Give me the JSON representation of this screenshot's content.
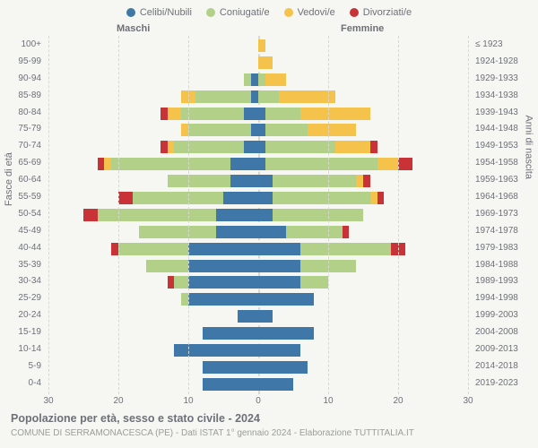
{
  "chart": {
    "type": "population-pyramid",
    "background_color": "#f6f7f3",
    "grid_color": "#d7d8d2",
    "text_color": "#6e7078",
    "header_male": "Maschi",
    "header_female": "Femmine",
    "ylabel_left": "Fasce di età",
    "ylabel_right": "Anni di nascita",
    "xmax": 30,
    "xticks": [
      30,
      20,
      10,
      0,
      10,
      20,
      30
    ],
    "legend": [
      {
        "label": "Celibi/Nubili",
        "color": "#3f78a8"
      },
      {
        "label": "Coniugati/e",
        "color": "#b2d088"
      },
      {
        "label": "Vedovi/e",
        "color": "#f5c24c"
      },
      {
        "label": "Divorziati/e",
        "color": "#c93337"
      }
    ],
    "rows": [
      {
        "age": "100+",
        "birth": "≤ 1923",
        "m": [
          0,
          0,
          0,
          0
        ],
        "f": [
          0,
          0,
          1,
          0
        ]
      },
      {
        "age": "95-99",
        "birth": "1924-1928",
        "m": [
          0,
          0,
          0,
          0
        ],
        "f": [
          0,
          0,
          2,
          0
        ]
      },
      {
        "age": "90-94",
        "birth": "1929-1933",
        "m": [
          1,
          1,
          0,
          0
        ],
        "f": [
          0,
          1,
          3,
          0
        ]
      },
      {
        "age": "85-89",
        "birth": "1934-1938",
        "m": [
          1,
          8,
          2,
          0
        ],
        "f": [
          0,
          3,
          8,
          0
        ]
      },
      {
        "age": "80-84",
        "birth": "1939-1943",
        "m": [
          2,
          9,
          2,
          1
        ],
        "f": [
          1,
          5,
          10,
          0
        ]
      },
      {
        "age": "75-79",
        "birth": "1944-1948",
        "m": [
          1,
          9,
          1,
          0
        ],
        "f": [
          1,
          6,
          7,
          0
        ]
      },
      {
        "age": "70-74",
        "birth": "1949-1953",
        "m": [
          2,
          10,
          1,
          1
        ],
        "f": [
          1,
          10,
          5,
          1
        ]
      },
      {
        "age": "65-69",
        "birth": "1954-1958",
        "m": [
          4,
          17,
          1,
          1
        ],
        "f": [
          1,
          16,
          3,
          2
        ]
      },
      {
        "age": "60-64",
        "birth": "1959-1963",
        "m": [
          4,
          9,
          0,
          0
        ],
        "f": [
          2,
          12,
          1,
          1
        ]
      },
      {
        "age": "55-59",
        "birth": "1964-1968",
        "m": [
          5,
          13,
          0,
          2
        ],
        "f": [
          2,
          14,
          1,
          1
        ]
      },
      {
        "age": "50-54",
        "birth": "1969-1973",
        "m": [
          6,
          17,
          0,
          2
        ],
        "f": [
          2,
          13,
          0,
          0
        ]
      },
      {
        "age": "45-49",
        "birth": "1974-1978",
        "m": [
          6,
          11,
          0,
          0
        ],
        "f": [
          4,
          8,
          0,
          1
        ]
      },
      {
        "age": "40-44",
        "birth": "1979-1983",
        "m": [
          10,
          10,
          0,
          1
        ],
        "f": [
          6,
          13,
          0,
          2
        ]
      },
      {
        "age": "35-39",
        "birth": "1984-1988",
        "m": [
          10,
          6,
          0,
          0
        ],
        "f": [
          6,
          8,
          0,
          0
        ]
      },
      {
        "age": "30-34",
        "birth": "1989-1993",
        "m": [
          10,
          2,
          0,
          1
        ],
        "f": [
          6,
          4,
          0,
          0
        ]
      },
      {
        "age": "25-29",
        "birth": "1994-1998",
        "m": [
          10,
          1,
          0,
          0
        ],
        "f": [
          8,
          0,
          0,
          0
        ]
      },
      {
        "age": "20-24",
        "birth": "1999-2003",
        "m": [
          3,
          0,
          0,
          0
        ],
        "f": [
          2,
          0,
          0,
          0
        ]
      },
      {
        "age": "15-19",
        "birth": "2004-2008",
        "m": [
          8,
          0,
          0,
          0
        ],
        "f": [
          8,
          0,
          0,
          0
        ]
      },
      {
        "age": "10-14",
        "birth": "2009-2013",
        "m": [
          12,
          0,
          0,
          0
        ],
        "f": [
          6,
          0,
          0,
          0
        ]
      },
      {
        "age": "5-9",
        "birth": "2014-2018",
        "m": [
          8,
          0,
          0,
          0
        ],
        "f": [
          7,
          0,
          0,
          0
        ]
      },
      {
        "age": "0-4",
        "birth": "2019-2023",
        "m": [
          8,
          0,
          0,
          0
        ],
        "f": [
          5,
          0,
          0,
          0
        ]
      }
    ]
  },
  "title": "Popolazione per età, sesso e stato civile - 2024",
  "subtitle": "COMUNE DI SERRAMONACESCA (PE) - Dati ISTAT 1° gennaio 2024 - Elaborazione TUTTITALIA.IT"
}
